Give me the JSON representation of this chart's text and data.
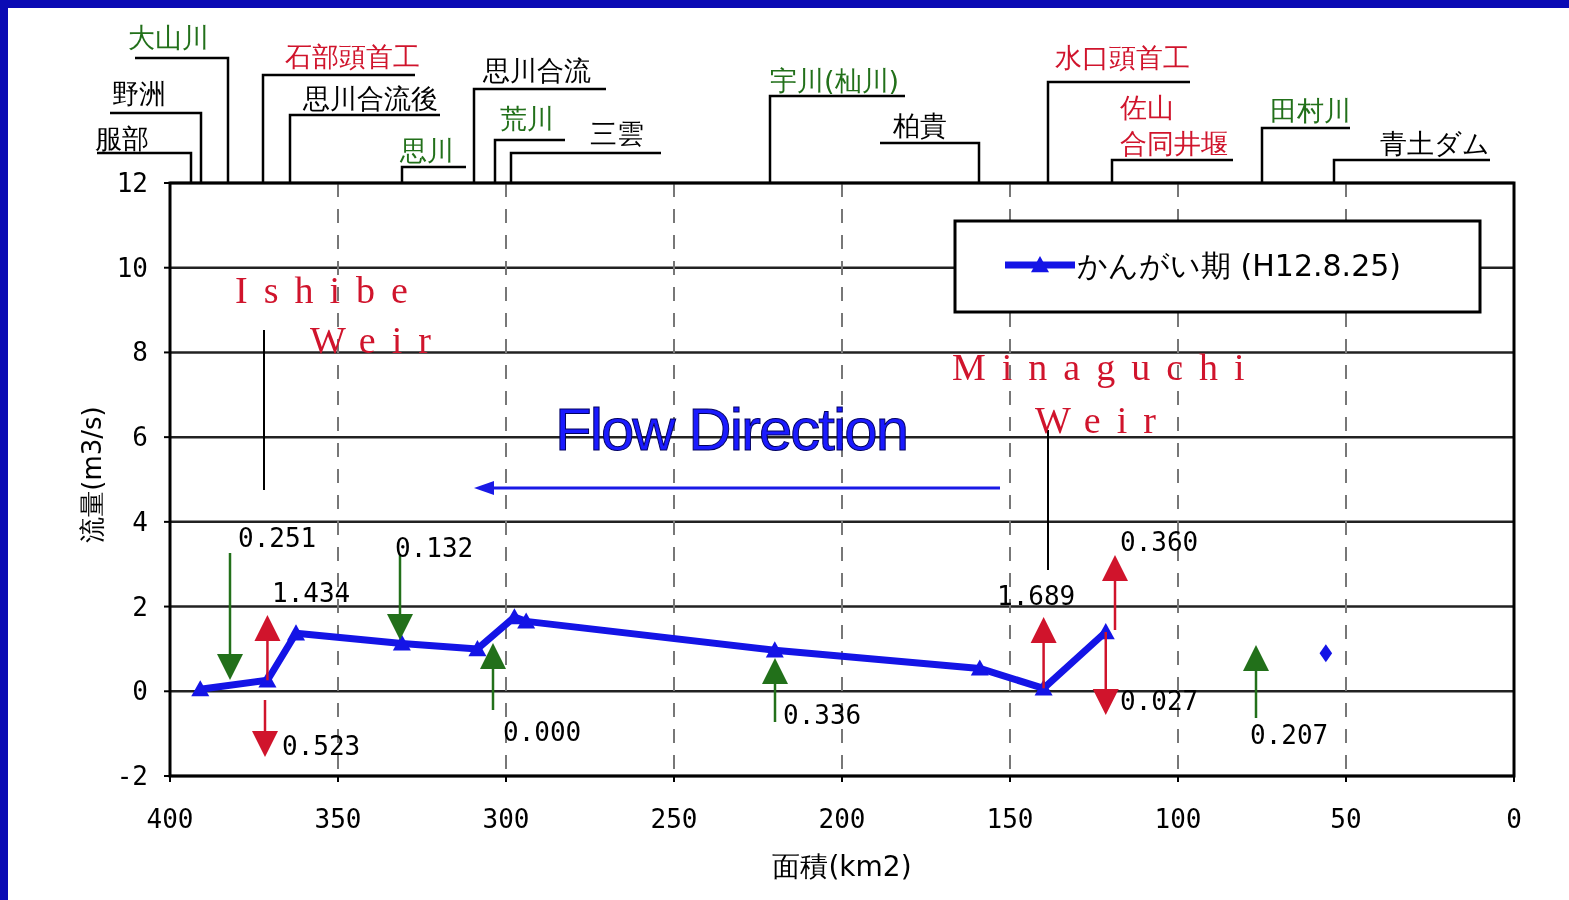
{
  "chart_data": {
    "type": "line",
    "xlabel": "面積(km2)",
    "ylabel": "流量(m3/s)",
    "xlim": [
      400,
      0
    ],
    "xticks": [
      400,
      350,
      300,
      250,
      200,
      150,
      100,
      50,
      0
    ],
    "ylim": [
      -2,
      12
    ],
    "yticks": [
      -2,
      0,
      2,
      4,
      6,
      8,
      10,
      12
    ],
    "grid": true,
    "legend": "top right",
    "marker": "triangle",
    "series": [
      {
        "name": "かんがい期 (H12.8.25)",
        "color": "#1414e6",
        "x": [
          391,
          371,
          362.5,
          331,
          308.5,
          297.5,
          294,
          220,
          159,
          140,
          121.5
        ],
        "values": [
          0.05,
          0.26,
          1.37,
          1.13,
          1.0,
          1.75,
          1.65,
          0.97,
          0.54,
          0.07,
          1.4
        ]
      },
      {
        "type": "scatter",
        "marker": "diamond",
        "color": "#1414e6",
        "x": [
          56
        ],
        "values": [
          0.9
        ]
      }
    ],
    "annotations": [
      "服部",
      "野洲",
      "大山川",
      "石部頭首工",
      "思川合流後",
      "思川",
      "思川合流",
      "荒川",
      "三雲",
      "宇川(杣川)",
      "柏貴",
      "水口頭首工",
      "佐山合同井堰",
      "田村川",
      "青土ダム",
      "Ishibe Weir",
      "Minaguchi Weir",
      "Flow Direction",
      "0.251",
      {
        "text": "1.434",
        "x": 371,
        "y": 0.26
      },
      "0.523",
      "0.132",
      "0.000",
      "0.336",
      {
        "text": "1.689",
        "x": 140,
        "y": 0.07
      },
      "0.360",
      {
        "text": "0.027",
        "x": 121.5,
        "y": 1.4
      },
      "0.207"
    ]
  }
}
